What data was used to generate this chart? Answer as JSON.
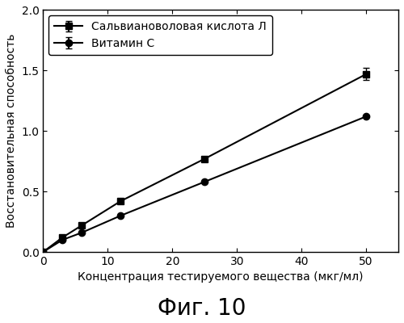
{
  "series1_label": "Сальвиановоловая кислота Л",
  "series2_label": "Витамин С",
  "series1_x": [
    0,
    3,
    6,
    12,
    25,
    50
  ],
  "series1_y": [
    0,
    0.12,
    0.22,
    0.42,
    0.77,
    1.47
  ],
  "series1_yerr": [
    0,
    0.0,
    0.0,
    0.0,
    0.0,
    0.05
  ],
  "series2_x": [
    0,
    3,
    6,
    12,
    25,
    50
  ],
  "series2_y": [
    0,
    0.1,
    0.16,
    0.3,
    0.58,
    1.12
  ],
  "series2_yerr": [
    0,
    0.0,
    0.0,
    0.0,
    0.0,
    0.0
  ],
  "xlabel": "Концентрация тестируемого вещества (мкг/мл)",
  "ylabel": "Восстановительная способность",
  "xlim": [
    0,
    55
  ],
  "ylim": [
    0,
    2.0
  ],
  "xticks": [
    0,
    10,
    20,
    30,
    40,
    50
  ],
  "yticks": [
    0.0,
    0.5,
    1.0,
    1.5,
    2.0
  ],
  "figure_title": "Фиг. 10",
  "line_color": "#000000",
  "marker1": "s",
  "marker2": "o",
  "markersize": 6,
  "linewidth": 1.5,
  "background_color": "#ffffff",
  "legend_loc": "upper left",
  "legend_fontsize": 10,
  "axis_fontsize": 10,
  "tick_fontsize": 10,
  "title_fontsize": 20
}
